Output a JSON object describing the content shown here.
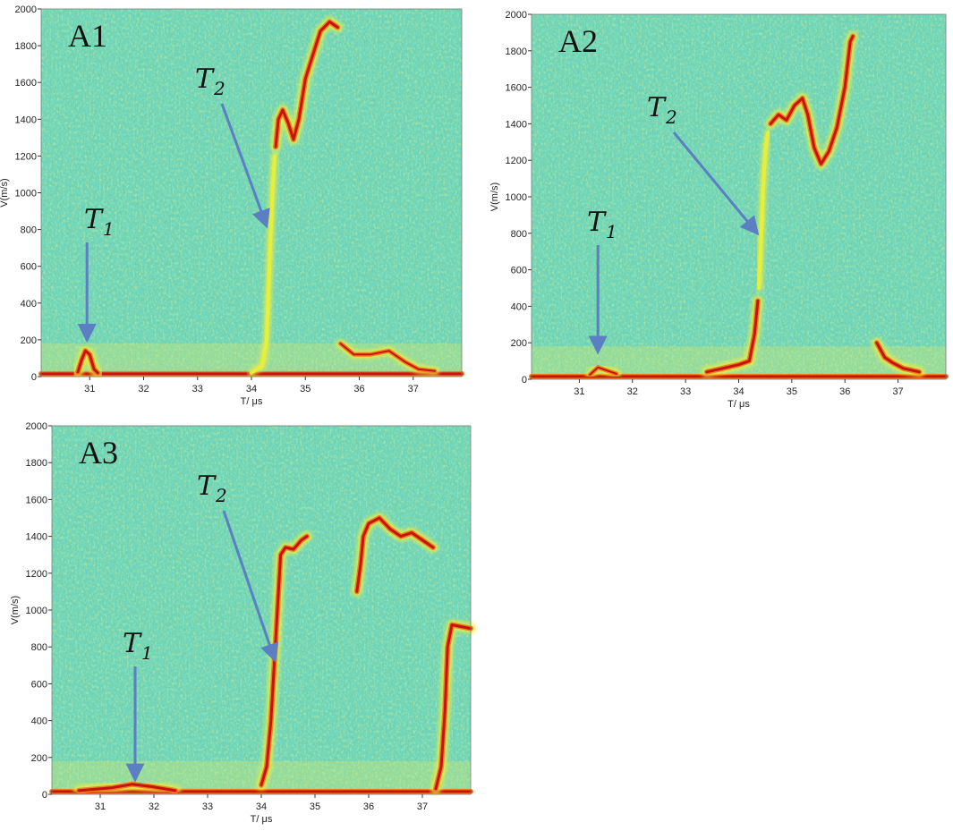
{
  "chart_data": [
    {
      "type": "heatmap",
      "panel_label": "A1",
      "xlabel": "T/ μs",
      "ylabel": "V(m/s)",
      "xlim": [
        30.1,
        37.9
      ],
      "ylim": [
        0,
        2000
      ],
      "xticks": [
        31,
        32,
        33,
        34,
        35,
        36,
        37
      ],
      "yticks": [
        0,
        200,
        400,
        600,
        800,
        1000,
        1200,
        1400,
        1600,
        1800,
        2000
      ],
      "traces": [
        {
          "points": [
            [
              30.1,
              15
            ],
            [
              31.0,
              15
            ],
            [
              32.0,
              15
            ],
            [
              33.0,
              15
            ],
            [
              34.0,
              15
            ],
            [
              35.0,
              15
            ],
            [
              36.0,
              15
            ],
            [
              37.0,
              15
            ],
            [
              37.9,
              15
            ]
          ],
          "intensity": "strong"
        },
        {
          "points": [
            [
              30.78,
              25
            ],
            [
              30.85,
              90
            ],
            [
              30.92,
              140
            ],
            [
              31.0,
              120
            ],
            [
              31.08,
              40
            ],
            [
              31.15,
              20
            ]
          ],
          "intensity": "strong"
        },
        {
          "points": [
            [
              34.0,
              20
            ],
            [
              34.2,
              60
            ],
            [
              34.28,
              200
            ],
            [
              34.32,
              500
            ],
            [
              34.36,
              800
            ],
            [
              34.4,
              1050
            ],
            [
              34.43,
              1200
            ]
          ],
          "intensity": "weak"
        },
        {
          "points": [
            [
              34.45,
              1250
            ],
            [
              34.5,
              1400
            ],
            [
              34.58,
              1450
            ],
            [
              34.68,
              1380
            ],
            [
              34.78,
              1290
            ],
            [
              34.88,
              1400
            ],
            [
              35.0,
              1620
            ],
            [
              35.15,
              1760
            ],
            [
              35.28,
              1880
            ],
            [
              35.45,
              1930
            ],
            [
              35.6,
              1900
            ]
          ],
          "intensity": "strong"
        },
        {
          "points": [
            [
              35.65,
              180
            ],
            [
              35.9,
              120
            ],
            [
              36.2,
              120
            ],
            [
              36.55,
              140
            ],
            [
              36.85,
              80
            ],
            [
              37.1,
              40
            ],
            [
              37.4,
              30
            ]
          ],
          "intensity": "medium"
        }
      ],
      "annotations": [
        {
          "text": "T",
          "sub": "1",
          "arrow_tip": [
            30.95,
            200
          ]
        },
        {
          "text": "T",
          "sub": "2",
          "arrow_tip": [
            34.28,
            820
          ]
        }
      ]
    },
    {
      "type": "heatmap",
      "panel_label": "A2",
      "xlabel": "T/ μs",
      "ylabel": "V(m/s)",
      "xlim": [
        30.1,
        37.9
      ],
      "ylim": [
        0,
        2000
      ],
      "xticks": [
        31,
        32,
        33,
        34,
        35,
        36,
        37
      ],
      "yticks": [
        0,
        200,
        400,
        600,
        800,
        1000,
        1200,
        1400,
        1600,
        1800,
        2000
      ],
      "traces": [
        {
          "points": [
            [
              30.1,
              15
            ],
            [
              31.0,
              15
            ],
            [
              32.0,
              15
            ],
            [
              33.0,
              15
            ],
            [
              34.0,
              15
            ],
            [
              35.0,
              15
            ],
            [
              36.0,
              15
            ],
            [
              37.0,
              15
            ],
            [
              37.9,
              15
            ]
          ],
          "intensity": "strong"
        },
        {
          "points": [
            [
              31.2,
              25
            ],
            [
              31.35,
              65
            ],
            [
              31.5,
              50
            ],
            [
              31.7,
              30
            ]
          ],
          "intensity": "medium"
        },
        {
          "points": [
            [
              33.4,
              40
            ],
            [
              33.7,
              60
            ],
            [
              34.0,
              80
            ],
            [
              34.2,
              100
            ],
            [
              34.3,
              250
            ],
            [
              34.36,
              430
            ]
          ],
          "intensity": "strong"
        },
        {
          "points": [
            [
              34.38,
              500
            ],
            [
              34.42,
              750
            ],
            [
              34.46,
              1050
            ],
            [
              34.5,
              1250
            ],
            [
              34.55,
              1350
            ]
          ],
          "intensity": "weak"
        },
        {
          "points": [
            [
              34.6,
              1400
            ],
            [
              34.75,
              1450
            ],
            [
              34.9,
              1420
            ],
            [
              35.05,
              1500
            ],
            [
              35.2,
              1540
            ],
            [
              35.3,
              1450
            ],
            [
              35.42,
              1270
            ],
            [
              35.55,
              1180
            ],
            [
              35.7,
              1250
            ],
            [
              35.85,
              1380
            ],
            [
              36.0,
              1600
            ],
            [
              36.1,
              1850
            ],
            [
              36.15,
              1880
            ]
          ],
          "intensity": "strong"
        },
        {
          "points": [
            [
              36.6,
              200
            ],
            [
              36.75,
              120
            ],
            [
              36.9,
              90
            ],
            [
              37.1,
              60
            ],
            [
              37.4,
              40
            ]
          ],
          "intensity": "strong"
        }
      ],
      "annotations": [
        {
          "text": "T",
          "sub": "1",
          "arrow_tip": [
            31.35,
            150
          ]
        },
        {
          "text": "T",
          "sub": "2",
          "arrow_tip": [
            34.35,
            800
          ]
        }
      ]
    },
    {
      "type": "heatmap",
      "panel_label": "A3",
      "xlabel": "T/ μs",
      "ylabel": "V(m/s)",
      "xlim": [
        30.1,
        37.9
      ],
      "ylim": [
        0,
        2000
      ],
      "xticks": [
        31,
        32,
        33,
        34,
        35,
        36,
        37
      ],
      "yticks": [
        0,
        200,
        400,
        600,
        800,
        1000,
        1200,
        1400,
        1600,
        1800,
        2000
      ],
      "traces": [
        {
          "points": [
            [
              30.1,
              15
            ],
            [
              31.0,
              15
            ],
            [
              32.0,
              15
            ],
            [
              33.0,
              15
            ],
            [
              34.0,
              15
            ],
            [
              35.0,
              15
            ],
            [
              36.0,
              15
            ],
            [
              37.0,
              15
            ],
            [
              37.9,
              15
            ]
          ],
          "intensity": "strong"
        },
        {
          "points": [
            [
              30.6,
              20
            ],
            [
              31.2,
              35
            ],
            [
              31.6,
              55
            ],
            [
              32.0,
              40
            ],
            [
              32.4,
              20
            ]
          ],
          "intensity": "strong"
        },
        {
          "points": [
            [
              34.0,
              50
            ],
            [
              34.1,
              150
            ],
            [
              34.18,
              400
            ],
            [
              34.24,
              700
            ],
            [
              34.3,
              1000
            ],
            [
              34.36,
              1300
            ],
            [
              34.45,
              1340
            ],
            [
              34.6,
              1330
            ],
            [
              34.75,
              1380
            ],
            [
              34.85,
              1400
            ]
          ],
          "intensity": "strong"
        },
        {
          "points": [
            [
              35.78,
              1100
            ],
            [
              35.85,
              1250
            ],
            [
              35.9,
              1400
            ],
            [
              36.0,
              1470
            ],
            [
              36.2,
              1500
            ],
            [
              36.4,
              1440
            ],
            [
              36.6,
              1400
            ],
            [
              36.8,
              1420
            ],
            [
              37.0,
              1380
            ],
            [
              37.2,
              1340
            ]
          ],
          "intensity": "strong"
        },
        {
          "points": [
            [
              37.25,
              30
            ],
            [
              37.35,
              150
            ],
            [
              37.42,
              450
            ],
            [
              37.47,
              800
            ],
            [
              37.55,
              920
            ],
            [
              37.9,
              900
            ]
          ],
          "intensity": "strong"
        }
      ],
      "annotations": [
        {
          "text": "T",
          "sub": "1",
          "arrow_tip": [
            31.65,
            80
          ]
        },
        {
          "text": "T",
          "sub": "2",
          "arrow_tip": [
            34.25,
            730
          ]
        }
      ]
    }
  ]
}
